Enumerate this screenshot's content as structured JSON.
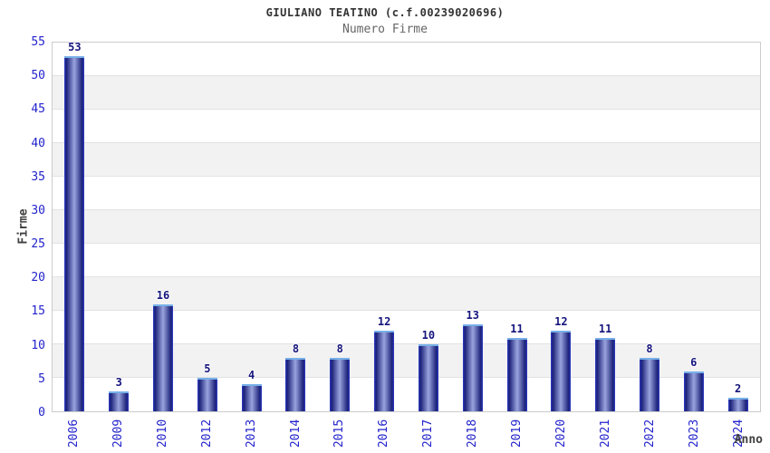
{
  "chart_data": {
    "type": "bar",
    "title": "GIULIANO TEATINO (c.f.00239020696)",
    "subtitle": "Numero Firme",
    "xlabel": "Anno",
    "ylabel": "Firme",
    "categories": [
      "2006",
      "2009",
      "2010",
      "2012",
      "2013",
      "2014",
      "2015",
      "2016",
      "2017",
      "2018",
      "2019",
      "2020",
      "2021",
      "2022",
      "2023",
      "2024"
    ],
    "values": [
      53,
      3,
      16,
      5,
      4,
      8,
      8,
      12,
      10,
      13,
      11,
      12,
      11,
      8,
      6,
      2
    ],
    "ylim": [
      0,
      55
    ],
    "ytick_step": 5,
    "grid": "alternating horizontal bands with gridlines every 5",
    "legend_position": "none",
    "bar_value_labels": true,
    "colors": {
      "background": "#ffffff",
      "title_text": "#333333",
      "subtitle_text": "#666666",
      "axis_tick_text": "#2323cc",
      "axis_title_text": "#404040",
      "value_label_text": "#15157d",
      "plot_border": "#cccccc",
      "gridline": "#e2e2e2",
      "band_white": "#ffffff",
      "band_gray": "#f2f2f2",
      "bar_edge": "#2e3cc8",
      "bar_dark": "#1b2178",
      "bar_light": "#9aa4de",
      "bar_cap": "#77b0e8"
    }
  }
}
